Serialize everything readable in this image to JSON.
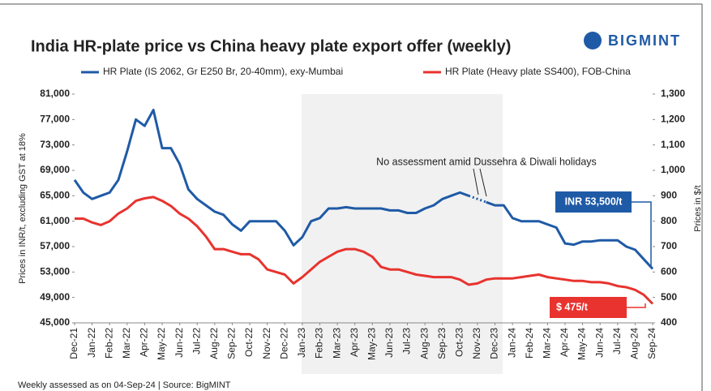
{
  "chart_data": {
    "type": "line",
    "title": "India HR-plate price vs China heavy plate export offer (weekly)",
    "logo": "BIGMINT",
    "ylabel": "Prices in INR/t, excluding GST at 18%",
    "y2label": "Prices in $/t",
    "annotation": "No assessment amid Dussehra & Diwali holidays",
    "callouts": [
      "INR 53,500/t",
      "$ 475/t"
    ],
    "footer": "Weekly assessed as on 04-Sep-24  |  Source: BigMINT",
    "categories": [
      "Dec-21",
      null,
      "Jan-22",
      null,
      "Feb-22",
      null,
      "Mar-22",
      null,
      "Apr-22",
      null,
      "May-22",
      null,
      "Jun-22",
      null,
      "Jul-22",
      null,
      "Aug-22",
      null,
      "Sep-22",
      null,
      "Oct-22",
      null,
      "Nov-22",
      null,
      "Dec-22",
      null,
      "Jan-23",
      null,
      "Feb-23",
      null,
      "Mar-23",
      null,
      "Apr-23",
      null,
      "May-23",
      null,
      "Jun-23",
      null,
      "Jul-23",
      null,
      "Aug-23",
      null,
      "Sep-23",
      null,
      "Oct-23",
      null,
      "Nov-23",
      null,
      "Dec-23",
      null,
      "Jan-24",
      null,
      "Feb-24",
      null,
      "Mar-24",
      null,
      "Apr-24",
      null,
      "May-24",
      null,
      "Jun-24",
      null,
      "Jul-24",
      null,
      "Aug-24",
      null,
      "Sep-24"
    ],
    "series": [
      {
        "name": "HR Plate (IS 2062, Gr E250 Br, 20-40mm), exy-Mumbai",
        "color": "#1f5aa6",
        "values": [
          67500,
          65500,
          64500,
          65000,
          65500,
          67500,
          72000,
          77000,
          76000,
          78500,
          72500,
          72500,
          70000,
          66000,
          64500,
          63500,
          62500,
          62000,
          60500,
          59500,
          61000,
          61000,
          61000,
          61000,
          59500,
          57200,
          58500,
          61000,
          61500,
          63000,
          63000,
          63200,
          63000,
          63000,
          63000,
          63000,
          62700,
          62700,
          62300,
          62300,
          63000,
          63500,
          64500,
          65000,
          65500,
          65000,
          null,
          64000,
          63500,
          63500,
          61500,
          61000,
          61000,
          61000,
          60500,
          60000,
          57500,
          57300,
          57800,
          57800,
          58000,
          58000,
          58000,
          57000,
          56500,
          55000,
          53500
        ]
      },
      {
        "name": "HR Plate (Heavy plate SS400), FOB-China",
        "color": "#e8332f",
        "axis": "y2",
        "values": [
          810,
          810,
          795,
          785,
          800,
          830,
          850,
          880,
          890,
          895,
          880,
          860,
          830,
          810,
          780,
          740,
          690,
          690,
          680,
          670,
          670,
          650,
          610,
          600,
          590,
          555,
          580,
          610,
          640,
          660,
          680,
          690,
          690,
          680,
          660,
          620,
          610,
          610,
          600,
          590,
          585,
          580,
          580,
          580,
          570,
          550,
          555,
          570,
          575,
          575,
          575,
          580,
          585,
          590,
          580,
          575,
          570,
          565,
          565,
          560,
          560,
          555,
          545,
          540,
          530,
          510,
          475
        ]
      }
    ],
    "ylim": [
      45000,
      81000
    ],
    "yticks": [
      {
        "value": 45000,
        "label": "45,000"
      },
      {
        "value": 49000,
        "label": "49,000"
      },
      {
        "value": 53000,
        "label": "53,000"
      },
      {
        "value": 57000,
        "label": "57,000"
      },
      {
        "value": 61000,
        "label": "61,000"
      },
      {
        "value": 65000,
        "label": "65,000"
      },
      {
        "value": 69000,
        "label": "69,000"
      },
      {
        "value": 73000,
        "label": "73,000"
      },
      {
        "value": 77000,
        "label": "77,000"
      },
      {
        "value": 81000,
        "label": "81,000"
      }
    ],
    "y2lim": [
      400,
      1300
    ],
    "y2ticks": [
      400,
      500,
      600,
      700,
      800,
      900,
      {
        "value": 1000,
        "label": "1,000"
      },
      {
        "value": 1100,
        "label": "1,100"
      },
      {
        "value": 1200,
        "label": "1,200"
      },
      {
        "value": 1300,
        "label": "1,300"
      }
    ]
  }
}
